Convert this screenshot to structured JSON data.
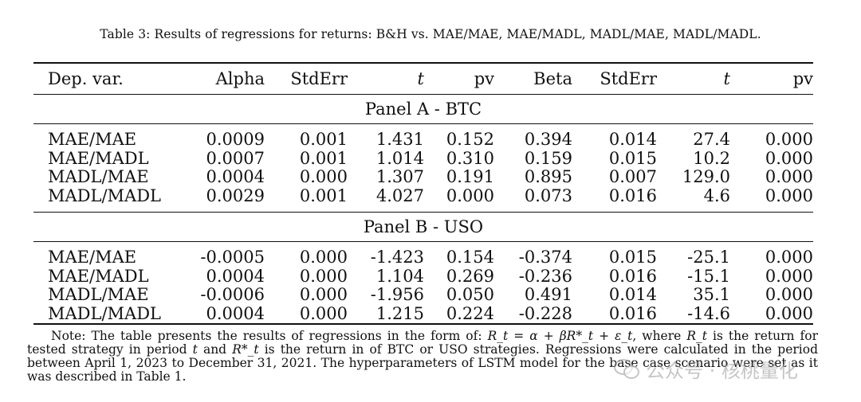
{
  "caption": "Table 3: Results of regressions for returns: B&H vs. MAE/MAE, MAE/MADL, MADL/MAE, MADL/MADL.",
  "header": [
    "Dep. var.",
    "Alpha",
    "StdErr",
    "t",
    "pv",
    "Beta",
    "StdErr",
    "t",
    "pv"
  ],
  "panels": [
    {
      "title": "Panel A - BTC",
      "rows": [
        [
          "MAE/MAE",
          "0.0009",
          "0.001",
          "1.431",
          "0.152",
          "0.394",
          "0.014",
          "27.4",
          "0.000"
        ],
        [
          "MAE/MADL",
          "0.0007",
          "0.001",
          "1.014",
          "0.310",
          "0.159",
          "0.015",
          "10.2",
          "0.000"
        ],
        [
          "MADL/MAE",
          "0.0004",
          "0.000",
          "1.307",
          "0.191",
          "0.895",
          "0.007",
          "129.0",
          "0.000"
        ],
        [
          "MADL/MADL",
          "0.0029",
          "0.001",
          "4.027",
          "0.000",
          "0.073",
          "0.016",
          "4.6",
          "0.000"
        ]
      ]
    },
    {
      "title": "Panel B - USO",
      "rows": [
        [
          "MAE/MAE",
          "-0.0005",
          "0.000",
          "-1.423",
          "0.154",
          "-0.374",
          "0.015",
          "-25.1",
          "0.000"
        ],
        [
          "MAE/MADL",
          "0.0004",
          "0.000",
          "1.104",
          "0.269",
          "-0.236",
          "0.016",
          "-15.1",
          "0.000"
        ],
        [
          "MADL/MAE",
          "-0.0006",
          "0.000",
          "-1.956",
          "0.050",
          "0.491",
          "0.014",
          "35.1",
          "0.000"
        ],
        [
          "MADL/MADL",
          "0.0004",
          "0.000",
          "1.215",
          "0.224",
          "-0.228",
          "0.016",
          "-14.6",
          "0.000"
        ]
      ]
    }
  ],
  "note": {
    "p1": "Note: The table presents the results of regressions in the form of: ",
    "formula": "R_t = α + βR*_t + ε_t",
    "p2": ", where ",
    "rt": "R_t",
    "p3": " is the return for tested strategy in period ",
    "t": "t",
    "p4": " and ",
    "rstar": "R*_t",
    "p5": " is the return in of BTC or USO strategies. Regressions were calculated in the period between April 1, 2023 to December 31, 2021. The hyperparameters of LSTM model for the base case scenario were set as it was described in Table 1."
  },
  "watermark": {
    "icon": "wechat-icon",
    "text": "公众号 · 核桃量化"
  }
}
